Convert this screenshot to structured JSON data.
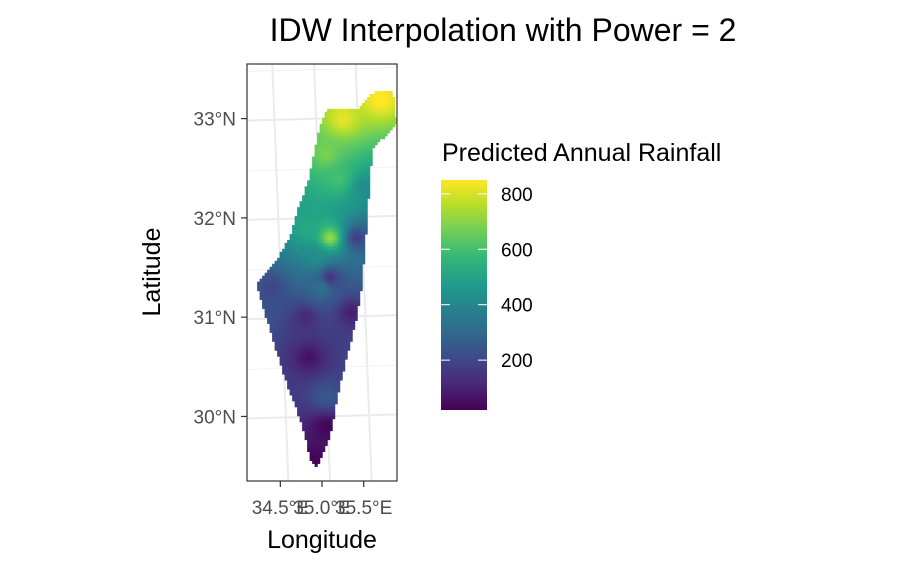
{
  "chart_data": {
    "type": "heatmap",
    "title": "IDW Interpolation with Power = 2",
    "xlabel": "Longitude",
    "ylabel": "Latitude",
    "x_ticks": [
      "34.5°E",
      "35.0°E",
      "35.5°E"
    ],
    "x_tick_values": [
      34.5,
      35.0,
      35.5
    ],
    "y_ticks": [
      "30°N",
      "31°N",
      "32°N",
      "33°N"
    ],
    "y_tick_values": [
      30,
      31,
      32,
      33
    ],
    "xlim": [
      34.1,
      35.9
    ],
    "ylim": [
      29.35,
      33.55
    ],
    "grid": true,
    "legend": {
      "title": "Predicted Annual Rainfall",
      "placement": "right",
      "colorscale": "viridis",
      "range": [
        20,
        850
      ],
      "labels": [
        "800",
        "600",
        "400",
        "200"
      ],
      "values": [
        800,
        600,
        400,
        200
      ]
    },
    "region_outline": [
      [
        34.22,
        31.32
      ],
      [
        34.48,
        31.6
      ],
      [
        34.62,
        31.82
      ],
      [
        34.72,
        32.1
      ],
      [
        34.85,
        32.4
      ],
      [
        34.93,
        32.72
      ],
      [
        34.98,
        32.93
      ],
      [
        35.06,
        33.09
      ],
      [
        35.45,
        33.1
      ],
      [
        35.62,
        33.26
      ],
      [
        35.85,
        33.29
      ],
      [
        35.9,
        32.95
      ],
      [
        35.62,
        32.7
      ],
      [
        35.57,
        32.4
      ],
      [
        35.55,
        32.0
      ],
      [
        35.52,
        31.75
      ],
      [
        35.48,
        31.3
      ],
      [
        35.42,
        31.0
      ],
      [
        35.3,
        30.6
      ],
      [
        35.2,
        30.25
      ],
      [
        35.1,
        29.8
      ],
      [
        34.95,
        29.5
      ],
      [
        34.88,
        29.52
      ],
      [
        34.75,
        29.95
      ],
      [
        34.55,
        30.4
      ],
      [
        34.35,
        30.95
      ],
      [
        34.22,
        31.32
      ]
    ],
    "influence_points": [
      {
        "lon": 35.25,
        "lat": 33.0,
        "value": 820
      },
      {
        "lon": 35.7,
        "lat": 33.2,
        "value": 860
      },
      {
        "lon": 35.05,
        "lat": 32.65,
        "value": 680
      },
      {
        "lon": 35.2,
        "lat": 32.4,
        "value": 600
      },
      {
        "lon": 35.1,
        "lat": 31.8,
        "value": 720
      },
      {
        "lon": 35.42,
        "lat": 31.8,
        "value": 180
      },
      {
        "lon": 35.52,
        "lat": 32.3,
        "value": 420
      },
      {
        "lon": 34.8,
        "lat": 31.9,
        "value": 520
      },
      {
        "lon": 34.95,
        "lat": 31.6,
        "value": 430
      },
      {
        "lon": 34.4,
        "lat": 31.3,
        "value": 200
      },
      {
        "lon": 34.8,
        "lat": 31.0,
        "value": 120
      },
      {
        "lon": 35.35,
        "lat": 31.05,
        "value": 90
      },
      {
        "lon": 35.0,
        "lat": 31.3,
        "value": 330
      },
      {
        "lon": 35.1,
        "lat": 31.4,
        "value": 150
      },
      {
        "lon": 34.85,
        "lat": 30.6,
        "value": 60
      },
      {
        "lon": 35.05,
        "lat": 30.2,
        "value": 250
      },
      {
        "lon": 35.05,
        "lat": 29.9,
        "value": 30
      },
      {
        "lon": 34.92,
        "lat": 29.55,
        "value": 30
      }
    ]
  }
}
